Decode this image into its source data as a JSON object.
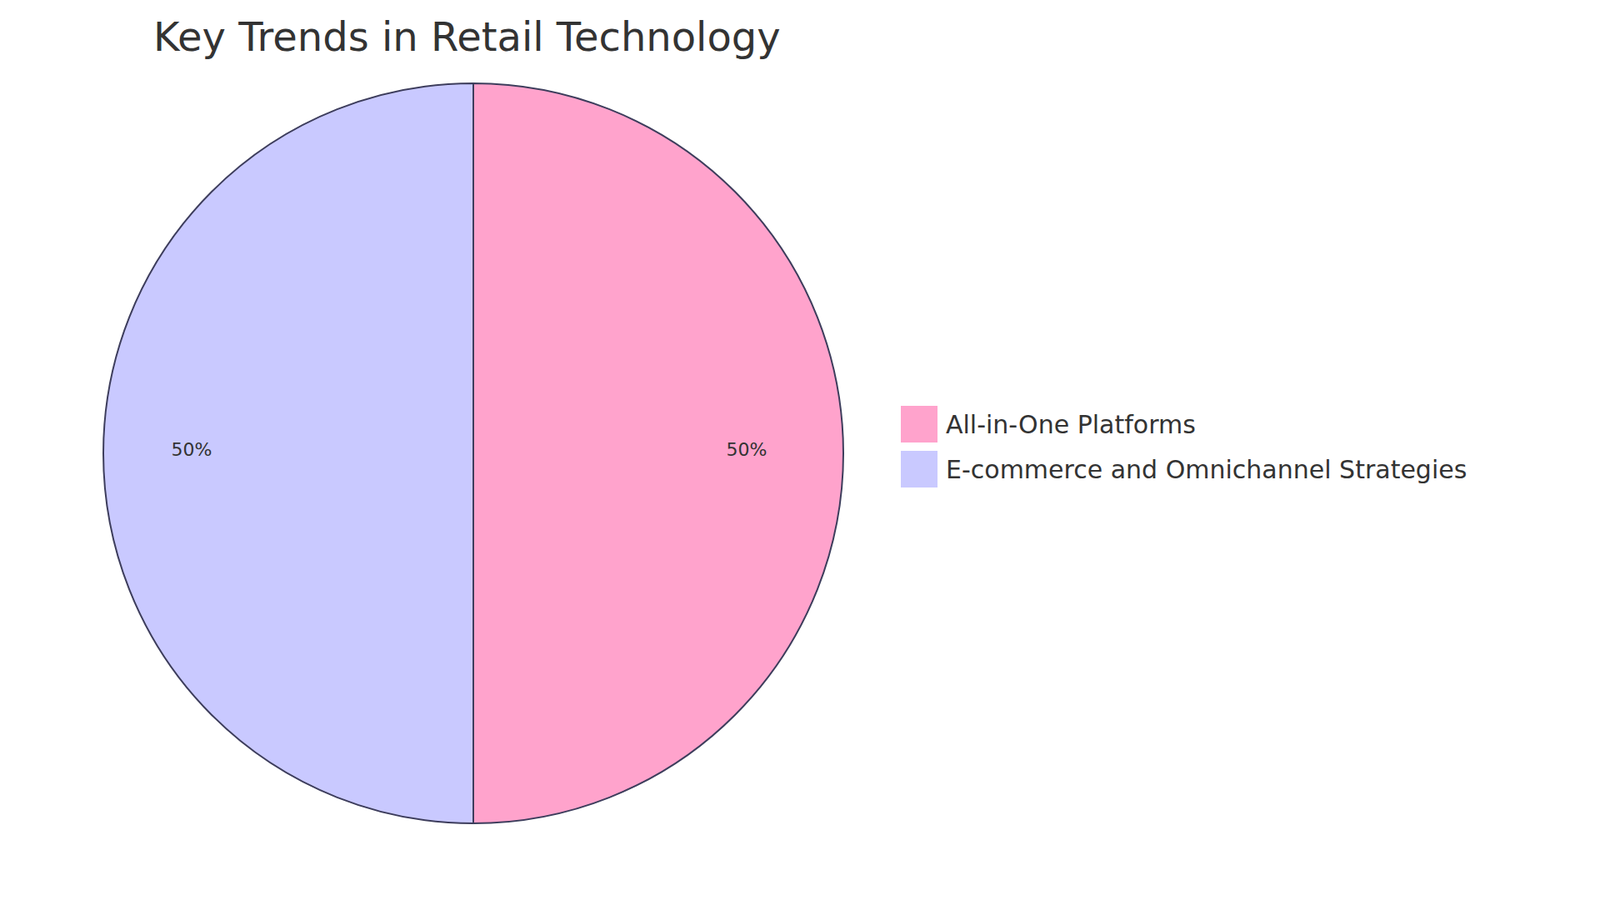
{
  "chart_data": {
    "type": "pie",
    "title": "Key Trends in Retail Technology",
    "categories": [
      "All-in-One Platforms",
      "E-commerce and Omnichannel Strategies"
    ],
    "values": [
      50,
      50
    ],
    "value_labels": [
      "50%",
      "50%"
    ],
    "colors": [
      "#ffa3cc",
      "#c9c9ff"
    ],
    "data_labels": true,
    "legend": "right"
  }
}
